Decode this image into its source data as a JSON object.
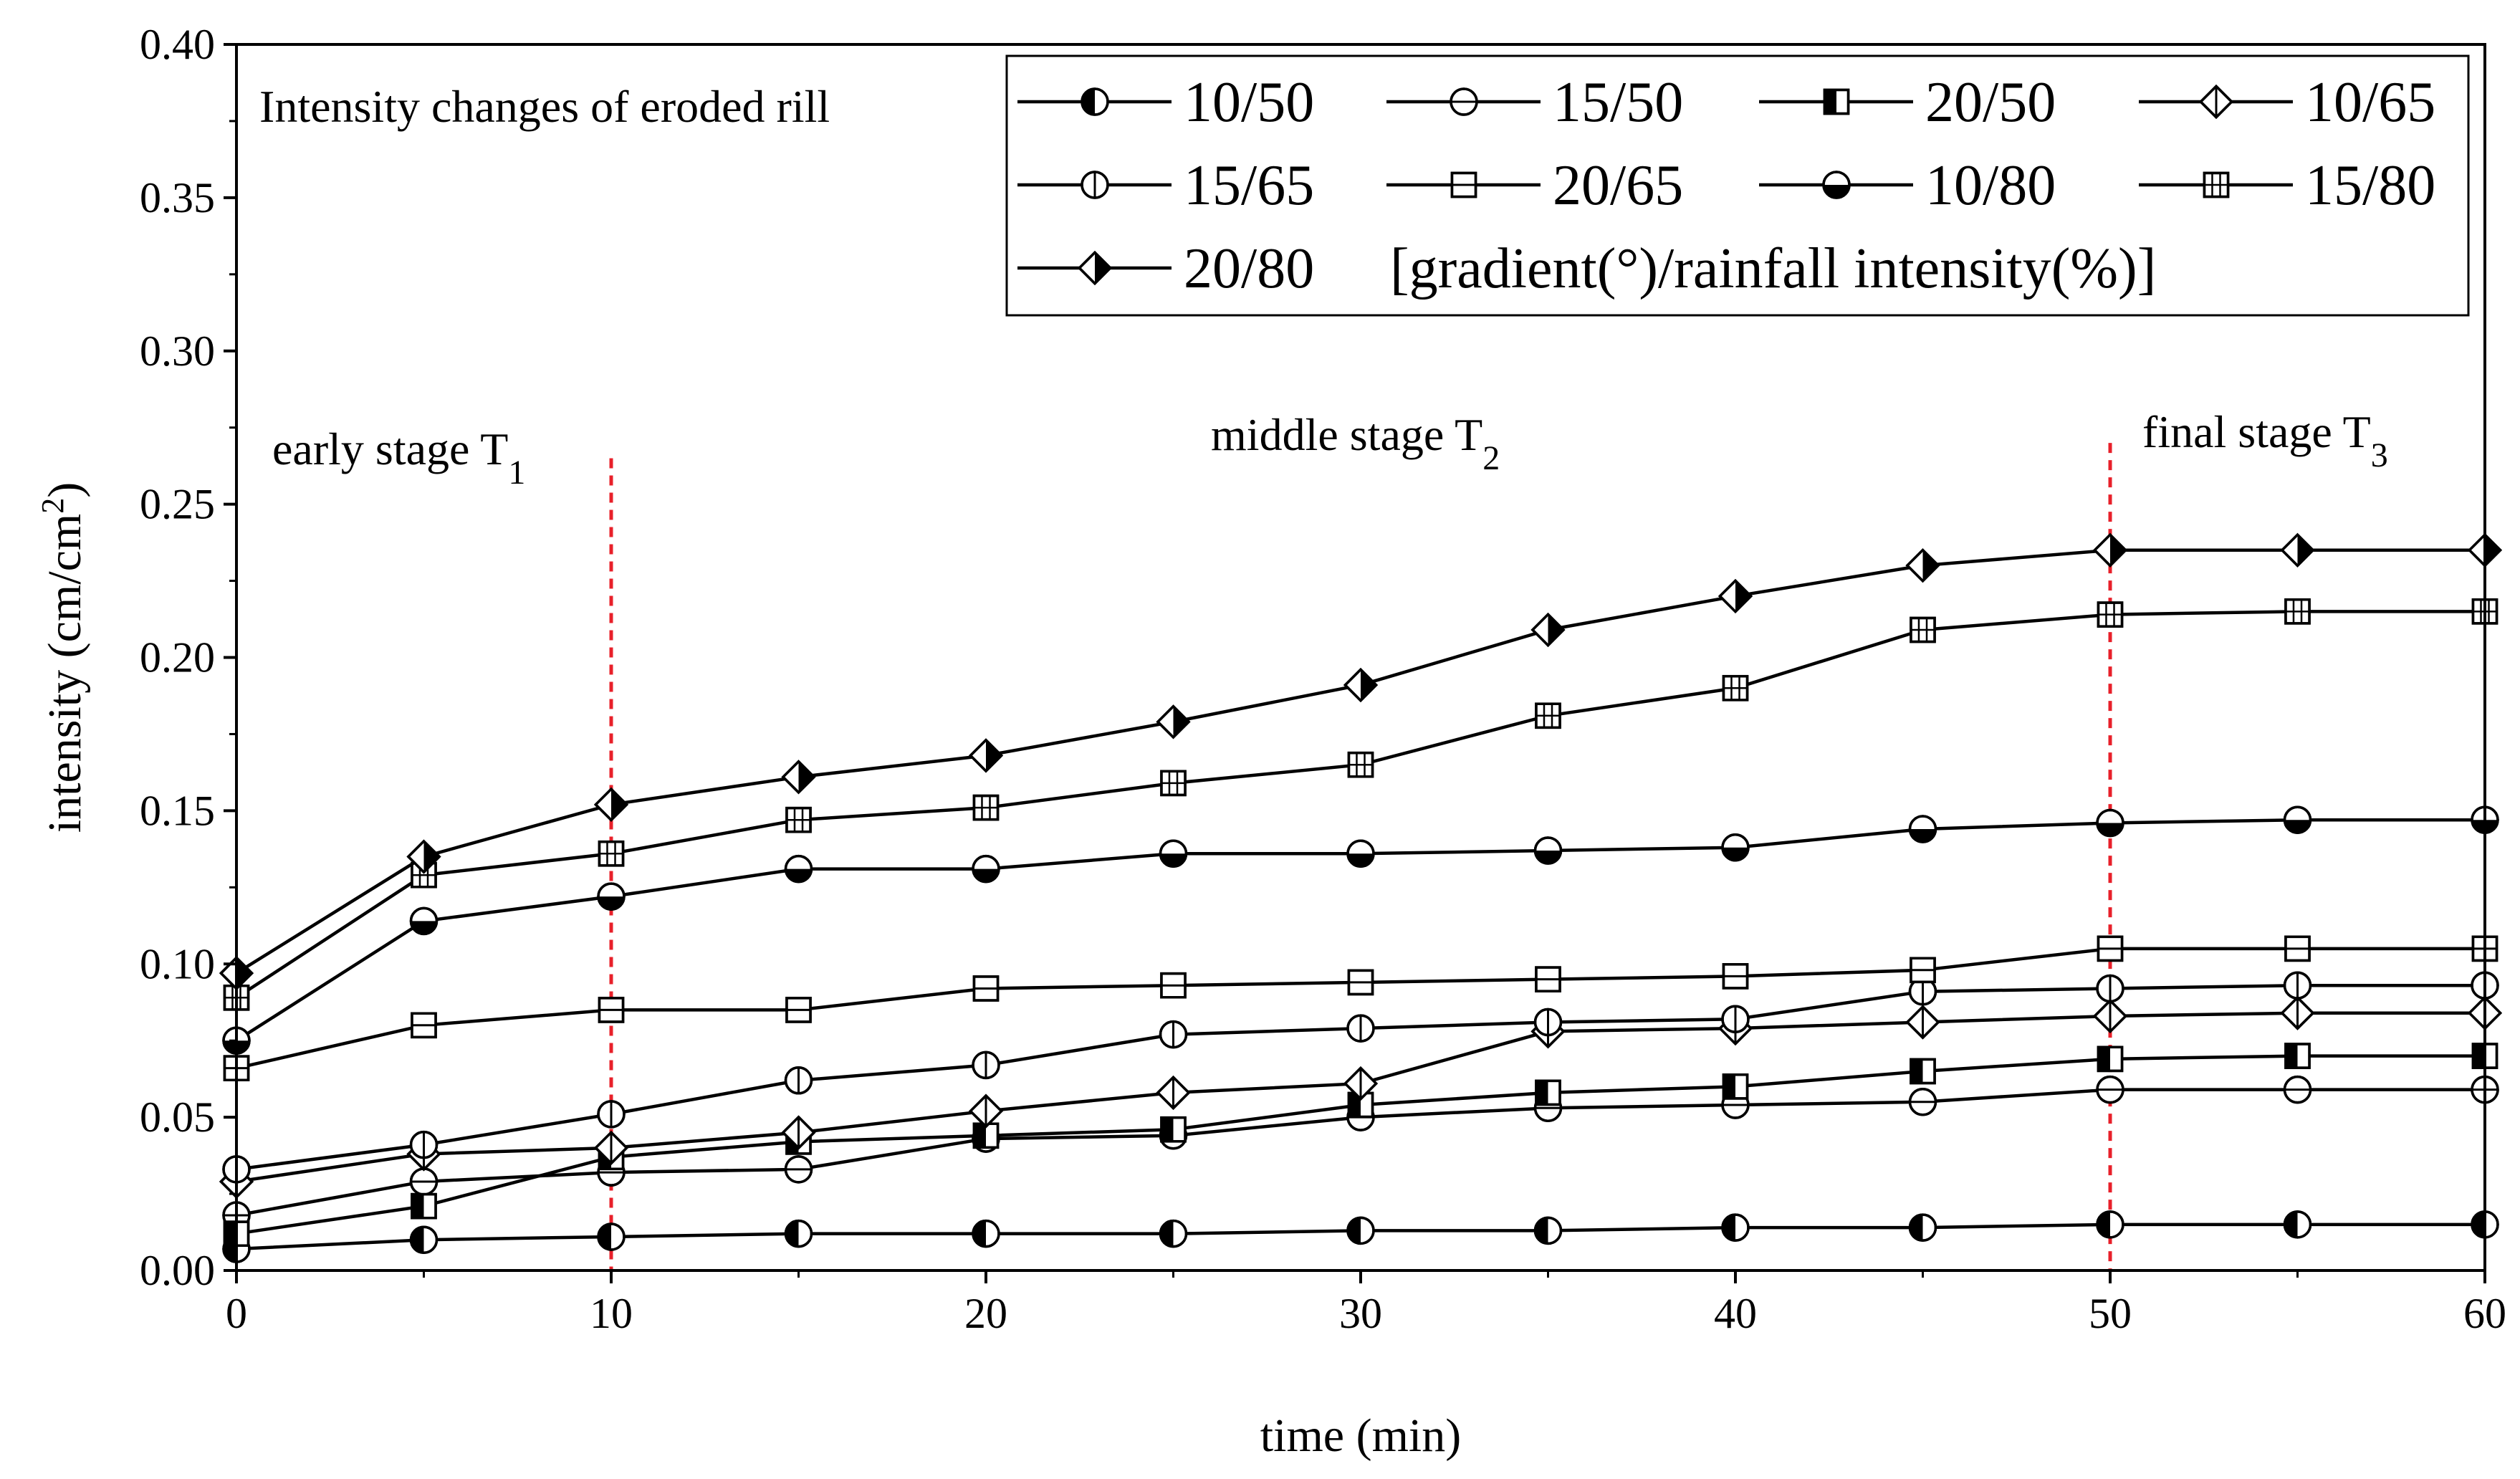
{
  "chart_data": {
    "type": "line",
    "title": "",
    "xlabel": "time (min)",
    "ylabel_main": "intensity (cm/cm",
    "ylabel_sup": "2",
    "ylabel_tail": ")",
    "xlim": [
      0,
      60
    ],
    "ylim": [
      0,
      0.4
    ],
    "x_ticks": [
      0,
      10,
      20,
      30,
      40,
      50,
      60
    ],
    "x_tick_labels": [
      "0",
      "10",
      "20",
      "30",
      "40",
      "50",
      "60"
    ],
    "y_ticks": [
      0,
      0.05,
      0.1,
      0.15,
      0.2,
      0.25,
      0.3,
      0.35,
      0.4
    ],
    "y_tick_labels": [
      "0.00",
      "0.05",
      "0.10",
      "0.15",
      "0.20",
      "0.25",
      "0.30",
      "0.35",
      "0.40"
    ],
    "x": [
      0,
      5,
      10,
      15,
      20,
      25,
      30,
      35,
      40,
      45,
      50,
      55,
      60
    ],
    "legend_title": "Intensity changes of eroded rill",
    "legend_note": "[gradient(°)/rainfall intensity(%)]",
    "series": [
      {
        "name": "10/50",
        "marker": "circle-left",
        "values": [
          0.007,
          0.01,
          0.011,
          0.012,
          0.012,
          0.012,
          0.013,
          0.013,
          0.014,
          0.014,
          0.015,
          0.015,
          0.015
        ]
      },
      {
        "name": "15/50",
        "marker": "circle-hline",
        "values": [
          0.018,
          0.029,
          0.032,
          0.033,
          0.043,
          0.044,
          0.05,
          0.053,
          0.054,
          0.055,
          0.059,
          0.059,
          0.059
        ]
      },
      {
        "name": "20/50",
        "marker": "square-left",
        "values": [
          0.012,
          0.021,
          0.037,
          0.042,
          0.044,
          0.046,
          0.054,
          0.058,
          0.06,
          0.065,
          0.069,
          0.07,
          0.07
        ]
      },
      {
        "name": "10/65",
        "marker": "diamond-vline",
        "values": [
          0.029,
          0.038,
          0.04,
          0.045,
          0.052,
          0.058,
          0.061,
          0.078,
          0.079,
          0.081,
          0.083,
          0.084,
          0.084
        ]
      },
      {
        "name": "15/65",
        "marker": "circle-vline",
        "values": [
          0.033,
          0.041,
          0.051,
          0.062,
          0.067,
          0.077,
          0.079,
          0.081,
          0.082,
          0.091,
          0.092,
          0.093,
          0.093
        ]
      },
      {
        "name": "20/65",
        "marker": "square-hline",
        "values": [
          0.066,
          0.08,
          0.085,
          0.085,
          0.092,
          0.093,
          0.094,
          0.095,
          0.096,
          0.098,
          0.105,
          0.105,
          0.105
        ]
      },
      {
        "name": "10/80",
        "marker": "circle-bottom",
        "values": [
          0.075,
          0.114,
          0.122,
          0.131,
          0.131,
          0.136,
          0.136,
          0.137,
          0.138,
          0.144,
          0.146,
          0.147,
          0.147
        ]
      },
      {
        "name": "15/80",
        "marker": "square-grid",
        "values": [
          0.089,
          0.129,
          0.136,
          0.147,
          0.151,
          0.159,
          0.165,
          0.181,
          0.19,
          0.209,
          0.214,
          0.215,
          0.215
        ]
      },
      {
        "name": "20/80",
        "marker": "diamond-right",
        "values": [
          0.097,
          0.135,
          0.152,
          0.161,
          0.168,
          0.179,
          0.191,
          0.209,
          0.22,
          0.23,
          0.235,
          0.235,
          0.235
        ]
      }
    ],
    "stage_lines": [
      {
        "x": 10,
        "color": "#e8202a"
      },
      {
        "x": 50,
        "color": "#e8202a"
      }
    ],
    "stage_labels": [
      {
        "text": "early stage T",
        "sub": "1"
      },
      {
        "text": "middle stage T",
        "sub": "2"
      },
      {
        "text": "final stage T",
        "sub": "3"
      }
    ]
  }
}
